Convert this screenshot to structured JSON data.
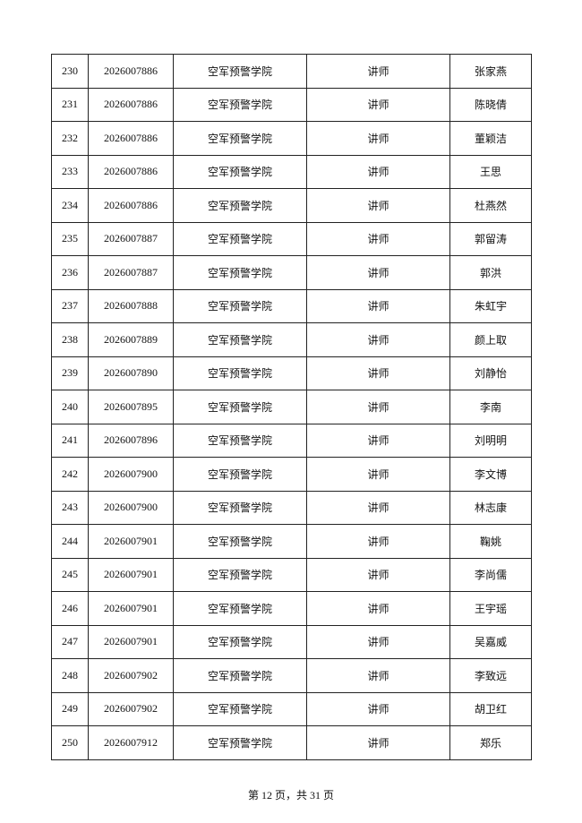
{
  "table": {
    "rows": [
      [
        "230",
        "2026007886",
        "空军预警学院",
        "讲师",
        "张家燕"
      ],
      [
        "231",
        "2026007886",
        "空军预警学院",
        "讲师",
        "陈晓倩"
      ],
      [
        "232",
        "2026007886",
        "空军预警学院",
        "讲师",
        "董颖洁"
      ],
      [
        "233",
        "2026007886",
        "空军预警学院",
        "讲师",
        "王思"
      ],
      [
        "234",
        "2026007886",
        "空军预警学院",
        "讲师",
        "杜燕然"
      ],
      [
        "235",
        "2026007887",
        "空军预警学院",
        "讲师",
        "郭留涛"
      ],
      [
        "236",
        "2026007887",
        "空军预警学院",
        "讲师",
        "郭洪"
      ],
      [
        "237",
        "2026007888",
        "空军预警学院",
        "讲师",
        "朱虹宇"
      ],
      [
        "238",
        "2026007889",
        "空军预警学院",
        "讲师",
        "颜上取"
      ],
      [
        "239",
        "2026007890",
        "空军预警学院",
        "讲师",
        "刘静怡"
      ],
      [
        "240",
        "2026007895",
        "空军预警学院",
        "讲师",
        "李南"
      ],
      [
        "241",
        "2026007896",
        "空军预警学院",
        "讲师",
        "刘明明"
      ],
      [
        "242",
        "2026007900",
        "空军预警学院",
        "讲师",
        "李文博"
      ],
      [
        "243",
        "2026007900",
        "空军预警学院",
        "讲师",
        "林志康"
      ],
      [
        "244",
        "2026007901",
        "空军预警学院",
        "讲师",
        "鞠姚"
      ],
      [
        "245",
        "2026007901",
        "空军预警学院",
        "讲师",
        "李尚儒"
      ],
      [
        "246",
        "2026007901",
        "空军预警学院",
        "讲师",
        "王宇瑶"
      ],
      [
        "247",
        "2026007901",
        "空军预警学院",
        "讲师",
        "吴嘉威"
      ],
      [
        "248",
        "2026007902",
        "空军预警学院",
        "讲师",
        "李致远"
      ],
      [
        "249",
        "2026007902",
        "空军预警学院",
        "讲师",
        "胡卫红"
      ],
      [
        "250",
        "2026007912",
        "空军预警学院",
        "讲师",
        "郑乐"
      ]
    ]
  },
  "footer": {
    "page": "第 12 页，共 31 页"
  }
}
